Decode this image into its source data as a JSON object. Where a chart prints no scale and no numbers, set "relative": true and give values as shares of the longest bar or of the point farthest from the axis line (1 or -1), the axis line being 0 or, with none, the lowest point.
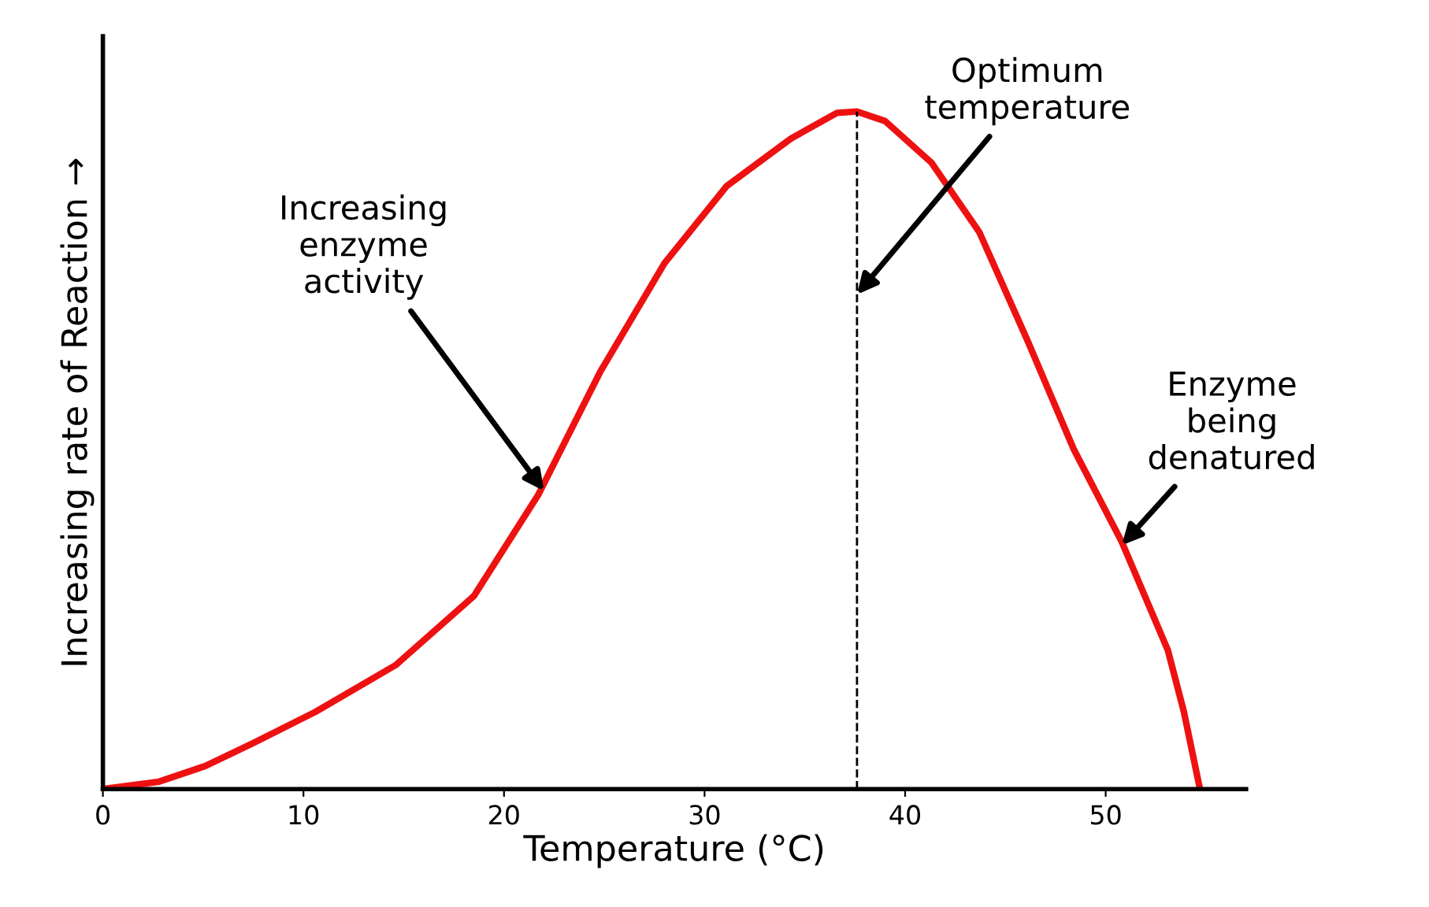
{
  "chart_data": {
    "type": "line",
    "relative": true,
    "xlabel": "Temperature (°C)",
    "ylabel": "Increasing rate of Reaction →",
    "xlim": [
      0,
      57
    ],
    "xticks": [
      0,
      10,
      20,
      30,
      40,
      50
    ],
    "x": [
      0,
      2.8,
      5.1,
      7.5,
      10.6,
      14.6,
      18.5,
      21.7,
      24.8,
      28.0,
      31.1,
      34.3,
      36.6,
      37.6,
      39.0,
      41.3,
      43.7,
      46.1,
      48.4,
      50.8,
      53.1,
      53.9,
      54.7
    ],
    "series": [
      {
        "color": "#ee1111",
        "values": [
          0,
          0.011,
          0.034,
          0.068,
          0.114,
          0.183,
          0.285,
          0.434,
          0.616,
          0.776,
          0.89,
          0.96,
          0.998,
          1.0,
          0.986,
          0.925,
          0.822,
          0.662,
          0.502,
          0.365,
          0.205,
          0.114,
          0
        ]
      }
    ],
    "ref_lines": [
      {
        "axis": "x",
        "value": 37.6,
        "color": "#000000",
        "line_style": "dashed"
      }
    ],
    "annotations": [
      {
        "text": "Increasing\nenzyme\nactivity",
        "x": 22.0,
        "y": 0.44
      },
      {
        "text": "Optimum\ntemperature",
        "x": 37.6,
        "y": 0.73
      },
      {
        "text": "Enzyme\nbeing\ndenatured",
        "x": 50.8,
        "y": 0.36
      }
    ],
    "grid": false,
    "legend": false,
    "marker": "none",
    "line_style": "solid"
  }
}
